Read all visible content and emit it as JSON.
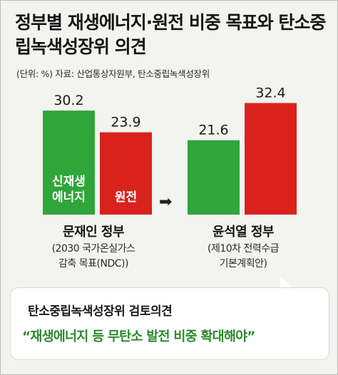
{
  "title": "정부별 재생에너지·원전 비중 목표와 탄소중립녹색성장위 의견",
  "source": "(단위: %) 자료: 산업통상자원부, 탄소중립녹색성장위",
  "colors": {
    "renewable": "#2fa53a",
    "nuclear": "#d9221c",
    "quote": "#2c8a2e"
  },
  "chart_data": {
    "type": "bar",
    "title": "정부별 재생에너지·원전 비중 목표와 탄소중립녹색성장위 의견",
    "unit": "%",
    "categories": [
      "문재인 정부",
      "윤석열 정부"
    ],
    "series": [
      {
        "name": "신재생 에너지",
        "values": [
          30.2,
          21.6
        ],
        "color": "#2fa53a"
      },
      {
        "name": "원전",
        "values": [
          23.9,
          32.4
        ],
        "color": "#d9221c"
      }
    ],
    "value_labels": [
      "30.2",
      "23.9",
      "21.6",
      "32.4"
    ],
    "bar_labels": {
      "renewable": [
        "신재생",
        "에너지"
      ],
      "nuclear": "원전"
    },
    "ylim": [
      0,
      35
    ],
    "grid": false
  },
  "groups": [
    {
      "name": "문재인 정부",
      "sub1": "(2030 국가온실가스",
      "sub2": "감축 목표(NDC))"
    },
    {
      "name": "윤석열 정부",
      "sub1": "(제10차 전력수급",
      "sub2": "기본계획안)"
    }
  ],
  "arrow_icon": "right-arrow-icon",
  "arrow_glyph": "➡",
  "callout": {
    "heading": "탄소중립녹색성장위 검토의견",
    "quote": "“재생에너지 등 무탄소 발전 비중 확대해야”"
  }
}
